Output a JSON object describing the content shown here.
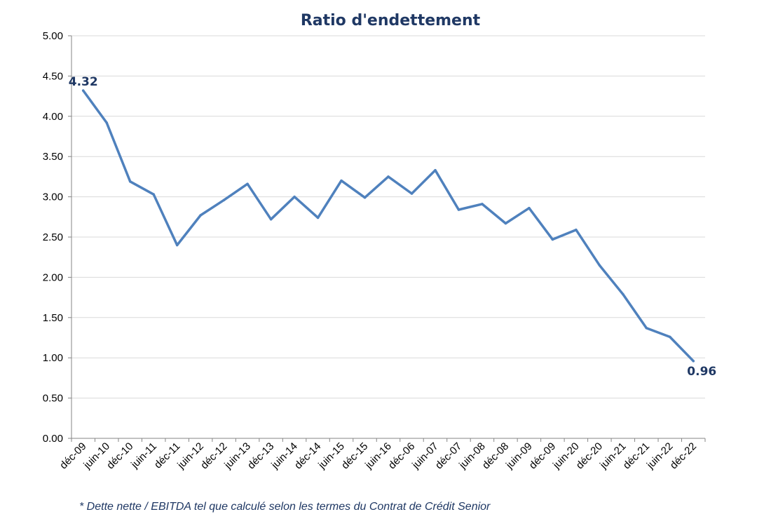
{
  "chart_data": {
    "type": "line",
    "title": "Ratio d'endettement",
    "footnote": "* Dette nette / EBITDA tel que calculé selon les termes du Contrat de Crédit Senior",
    "categories": [
      "déc-09",
      "juin-10",
      "déc-10",
      "juin-11",
      "déc-11",
      "juin-12",
      "déc-12",
      "juin-13",
      "déc-13",
      "juin-14",
      "déc-14",
      "juin-15",
      "déc-15",
      "juin-16",
      "déc-06",
      "juin-07",
      "déc-07",
      "juin-08",
      "déc-08",
      "juin-09",
      "déc-09",
      "juin-20",
      "déc-20",
      "juin-21",
      "déc-21",
      "juin-22",
      "déc-22"
    ],
    "series": [
      {
        "values": [
          4.32,
          3.92,
          3.19,
          3.03,
          2.4,
          2.77,
          2.96,
          3.16,
          2.72,
          3.0,
          2.74,
          3.2,
          2.99,
          3.25,
          3.04,
          3.33,
          2.84,
          2.91,
          2.67,
          2.86,
          2.47,
          2.59,
          2.15,
          1.79,
          1.37,
          1.26,
          0.96
        ]
      }
    ],
    "data_labels": [
      {
        "index": 0,
        "text": "4.32"
      },
      {
        "index": 26,
        "text": "0.96"
      }
    ],
    "yticks": [
      "0.00",
      "0.50",
      "1.00",
      "1.50",
      "2.00",
      "2.50",
      "3.00",
      "3.50",
      "4.00",
      "4.50",
      "5.00"
    ],
    "ylim": [
      0,
      5
    ],
    "grid": true,
    "legend": "none",
    "colors": {
      "line": "#4f81bd",
      "title": "#1f3864",
      "grid": "#d9d9d9"
    }
  }
}
